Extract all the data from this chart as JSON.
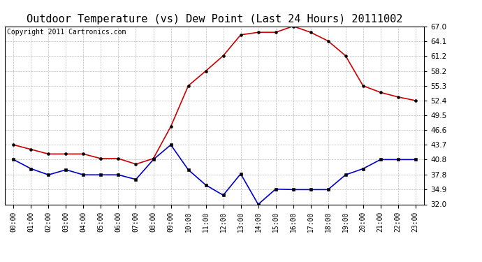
{
  "title": "Outdoor Temperature (vs) Dew Point (Last 24 Hours) 20111002",
  "copyright": "Copyright 2011 Cartronics.com",
  "hours": [
    "00:00",
    "01:00",
    "02:00",
    "03:00",
    "04:00",
    "05:00",
    "06:00",
    "07:00",
    "08:00",
    "09:00",
    "10:00",
    "11:00",
    "12:00",
    "13:00",
    "14:00",
    "15:00",
    "16:00",
    "17:00",
    "18:00",
    "19:00",
    "20:00",
    "21:00",
    "22:00",
    "23:00"
  ],
  "temp": [
    43.7,
    42.8,
    41.9,
    41.9,
    41.9,
    41.0,
    41.0,
    39.9,
    41.0,
    47.3,
    55.3,
    58.2,
    61.2,
    65.3,
    65.8,
    65.8,
    67.0,
    65.8,
    64.1,
    61.2,
    55.3,
    54.0,
    53.1,
    52.4
  ],
  "dew": [
    40.8,
    39.0,
    37.8,
    38.8,
    37.8,
    37.8,
    37.8,
    36.9,
    40.8,
    43.7,
    38.8,
    35.8,
    33.8,
    38.0,
    32.0,
    35.0,
    34.9,
    34.9,
    34.9,
    37.8,
    39.0,
    40.8,
    40.8,
    40.8
  ],
  "ylim": [
    32.0,
    67.0
  ],
  "yticks": [
    32.0,
    34.9,
    37.8,
    40.8,
    43.7,
    46.6,
    49.5,
    52.4,
    55.3,
    58.2,
    61.2,
    64.1,
    67.0
  ],
  "temp_color": "#cc0000",
  "dew_color": "#0000cc",
  "bg_color": "#ffffff",
  "grid_color": "#bbbbbb",
  "title_fontsize": 11,
  "copyright_fontsize": 7
}
